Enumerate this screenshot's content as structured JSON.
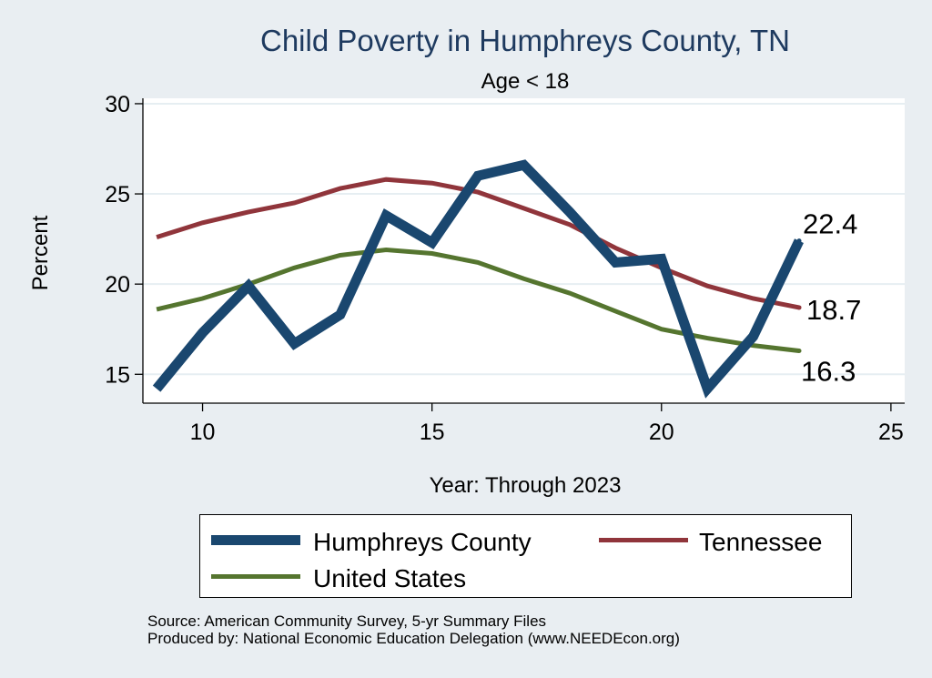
{
  "chart_data": {
    "type": "line",
    "title": "Child Poverty in Humphreys County, TN",
    "subtitle": "Age < 18",
    "xlabel": "Year: Through 2023",
    "ylabel": "Percent",
    "xlim": [
      8.7,
      25.3
    ],
    "ylim": [
      13.4,
      30.3
    ],
    "xticks": [
      10,
      15,
      20,
      25
    ],
    "yticks": [
      15,
      20,
      25,
      30
    ],
    "grid": "horizontal",
    "legend_position": "bottom",
    "series": [
      {
        "name": "Humphreys County",
        "color": "#1a476f",
        "x": [
          9,
          10,
          11,
          12,
          13,
          14,
          15,
          16,
          17,
          18,
          19,
          20,
          21,
          22,
          23
        ],
        "values": [
          14.2,
          17.3,
          19.9,
          16.7,
          18.3,
          23.8,
          22.3,
          26.0,
          26.6,
          24.0,
          21.2,
          21.4,
          14.2,
          17.1,
          22.4
        ],
        "end_label": "22.4"
      },
      {
        "name": "Tennessee",
        "color": "#90353b",
        "x": [
          9,
          10,
          11,
          12,
          13,
          14,
          15,
          16,
          17,
          18,
          19,
          20,
          21,
          22,
          23
        ],
        "values": [
          22.6,
          23.4,
          24.0,
          24.5,
          25.3,
          25.8,
          25.6,
          25.1,
          24.2,
          23.3,
          22.0,
          20.9,
          19.9,
          19.2,
          18.7
        ],
        "end_label": "18.7"
      },
      {
        "name": "United States",
        "color": "#55752f",
        "x": [
          9,
          10,
          11,
          12,
          13,
          14,
          15,
          16,
          17,
          18,
          19,
          20,
          21,
          22,
          23
        ],
        "values": [
          18.6,
          19.2,
          20.0,
          20.9,
          21.6,
          21.9,
          21.7,
          21.2,
          20.3,
          19.5,
          18.5,
          17.5,
          17.0,
          16.6,
          16.3
        ],
        "end_label": "16.3"
      }
    ]
  },
  "notes": [
    "Source: American Community Survey, 5-yr Summary Files",
    "Produced by: National Economic Education Delegation (www.NEEDEcon.org)"
  ]
}
